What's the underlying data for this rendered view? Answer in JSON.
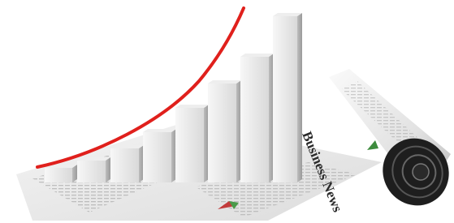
{
  "headline": "Business News"
}
